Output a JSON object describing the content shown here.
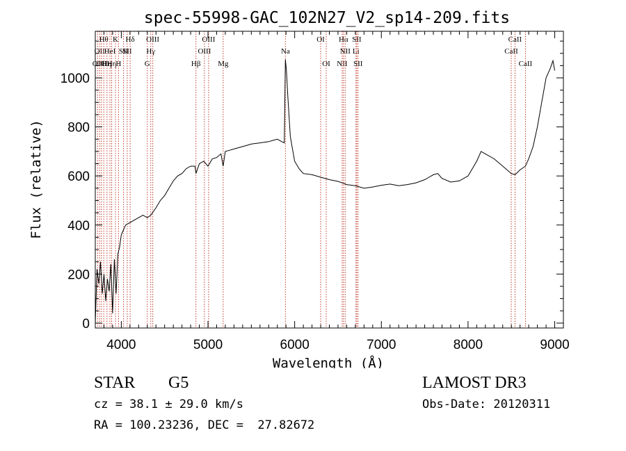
{
  "chart_data": {
    "type": "line",
    "title": "spec-55998-GAC_102N27_V2_sp14-209.fits",
    "xlabel": "Wavelength (Å)",
    "ylabel": "Flux (relative)",
    "xlim": [
      3700,
      9100
    ],
    "ylim": [
      -20,
      1190
    ],
    "x_ticks": [
      4000,
      5000,
      6000,
      7000,
      8000,
      9000
    ],
    "x_tick_labels": [
      "4000",
      "5000",
      "6000",
      "7000",
      "8000",
      "9000"
    ],
    "y_ticks": [
      0,
      200,
      400,
      600,
      800,
      1000
    ],
    "y_tick_labels": [
      "0",
      "200",
      "400",
      "600",
      "800",
      "1000"
    ],
    "grid": false,
    "line_color": "#000000",
    "marker_color": "#c0392b",
    "series": [
      {
        "name": "spectrum",
        "x": [
          3700,
          3720,
          3740,
          3760,
          3780,
          3800,
          3820,
          3840,
          3860,
          3880,
          3900,
          3920,
          3940,
          3960,
          3980,
          4000,
          4050,
          4100,
          4150,
          4200,
          4250,
          4300,
          4340,
          4400,
          4450,
          4500,
          4550,
          4600,
          4650,
          4700,
          4750,
          4800,
          4850,
          4861,
          4900,
          4950,
          5000,
          5050,
          5100,
          5150,
          5175,
          5200,
          5250,
          5300,
          5350,
          5400,
          5450,
          5500,
          5600,
          5700,
          5750,
          5800,
          5850,
          5880,
          5893,
          5905,
          5920,
          5950,
          6000,
          6050,
          6100,
          6200,
          6300,
          6400,
          6500,
          6563,
          6600,
          6700,
          6800,
          6900,
          7000,
          7100,
          7200,
          7300,
          7400,
          7500,
          7550,
          7600,
          7650,
          7700,
          7800,
          7900,
          8000,
          8100,
          8150,
          8200,
          8300,
          8400,
          8498,
          8542,
          8600,
          8662,
          8700,
          8750,
          8800,
          8850,
          8900,
          8950,
          8980,
          9000
        ],
        "y": [
          0,
          220,
          160,
          250,
          120,
          200,
          90,
          180,
          130,
          240,
          40,
          260,
          120,
          280,
          310,
          360,
          400,
          410,
          420,
          430,
          440,
          430,
          440,
          470,
          500,
          520,
          550,
          580,
          600,
          610,
          630,
          640,
          640,
          610,
          650,
          660,
          640,
          670,
          675,
          690,
          640,
          700,
          705,
          710,
          715,
          720,
          725,
          730,
          735,
          740,
          745,
          750,
          740,
          735,
          1075,
          1030,
          930,
          760,
          660,
          630,
          610,
          605,
          595,
          585,
          578,
          570,
          565,
          560,
          550,
          555,
          562,
          567,
          560,
          565,
          572,
          585,
          595,
          605,
          610,
          590,
          575,
          580,
          600,
          660,
          700,
          690,
          670,
          640,
          610,
          605,
          625,
          640,
          670,
          720,
          800,
          900,
          1000,
          1040,
          1070,
          1030
        ]
      }
    ],
    "line_markers": [
      {
        "wave": 3727,
        "label": "OII",
        "row": 2
      },
      {
        "wave": 3750,
        "label": "OII",
        "row": 1
      },
      {
        "wave": 3771,
        "label": "OII",
        "row": 2
      },
      {
        "wave": 3798,
        "label": "Hθ",
        "row": 0
      },
      {
        "wave": 3835,
        "label": "Hη",
        "row": 2
      },
      {
        "wave": 3869,
        "label": "HeI",
        "row": 1
      },
      {
        "wave": 3889,
        "label": "Hη",
        "row": 2
      },
      {
        "wave": 3933,
        "label": "K",
        "row": 0
      },
      {
        "wave": 3968,
        "label": "H",
        "row": 2
      },
      {
        "wave": 4026,
        "label": "SII",
        "row": 1
      },
      {
        "wave": 4068,
        "label": "SII",
        "row": 1
      },
      {
        "wave": 4102,
        "label": "Hδ",
        "row": 0
      },
      {
        "wave": 4300,
        "label": "G",
        "row": 2
      },
      {
        "wave": 4340,
        "label": "Hγ",
        "row": 1
      },
      {
        "wave": 4363,
        "label": "OIII",
        "row": 0
      },
      {
        "wave": 4861,
        "label": "Hβ",
        "row": 2
      },
      {
        "wave": 4959,
        "label": "OIII",
        "row": 1
      },
      {
        "wave": 5007,
        "label": "OIII",
        "row": 0
      },
      {
        "wave": 5175,
        "label": "Mg",
        "row": 2
      },
      {
        "wave": 5893,
        "label": "Na",
        "row": 1
      },
      {
        "wave": 6300,
        "label": "OI",
        "row": 0
      },
      {
        "wave": 6364,
        "label": "OI",
        "row": 2
      },
      {
        "wave": 6548,
        "label": "NII",
        "row": 2
      },
      {
        "wave": 6563,
        "label": "Hα",
        "row": 0
      },
      {
        "wave": 6583,
        "label": "NII",
        "row": 1
      },
      {
        "wave": 6707,
        "label": "Li",
        "row": 1
      },
      {
        "wave": 6716,
        "label": "SII",
        "row": 0
      },
      {
        "wave": 6731,
        "label": "SII",
        "row": 2
      },
      {
        "wave": 8498,
        "label": "CaII",
        "row": 1
      },
      {
        "wave": 8542,
        "label": "CaII",
        "row": 0
      },
      {
        "wave": 8662,
        "label": "CaII",
        "row": 2
      }
    ]
  },
  "info": {
    "class": "STAR",
    "subclass": "G5",
    "survey": "LAMOST DR3",
    "cz": "cz = 38.1 ± 29.0 km/s",
    "obs_date": "Obs-Date: 20120311",
    "radec": "RA = 100.23236, DEC =  27.82672"
  }
}
